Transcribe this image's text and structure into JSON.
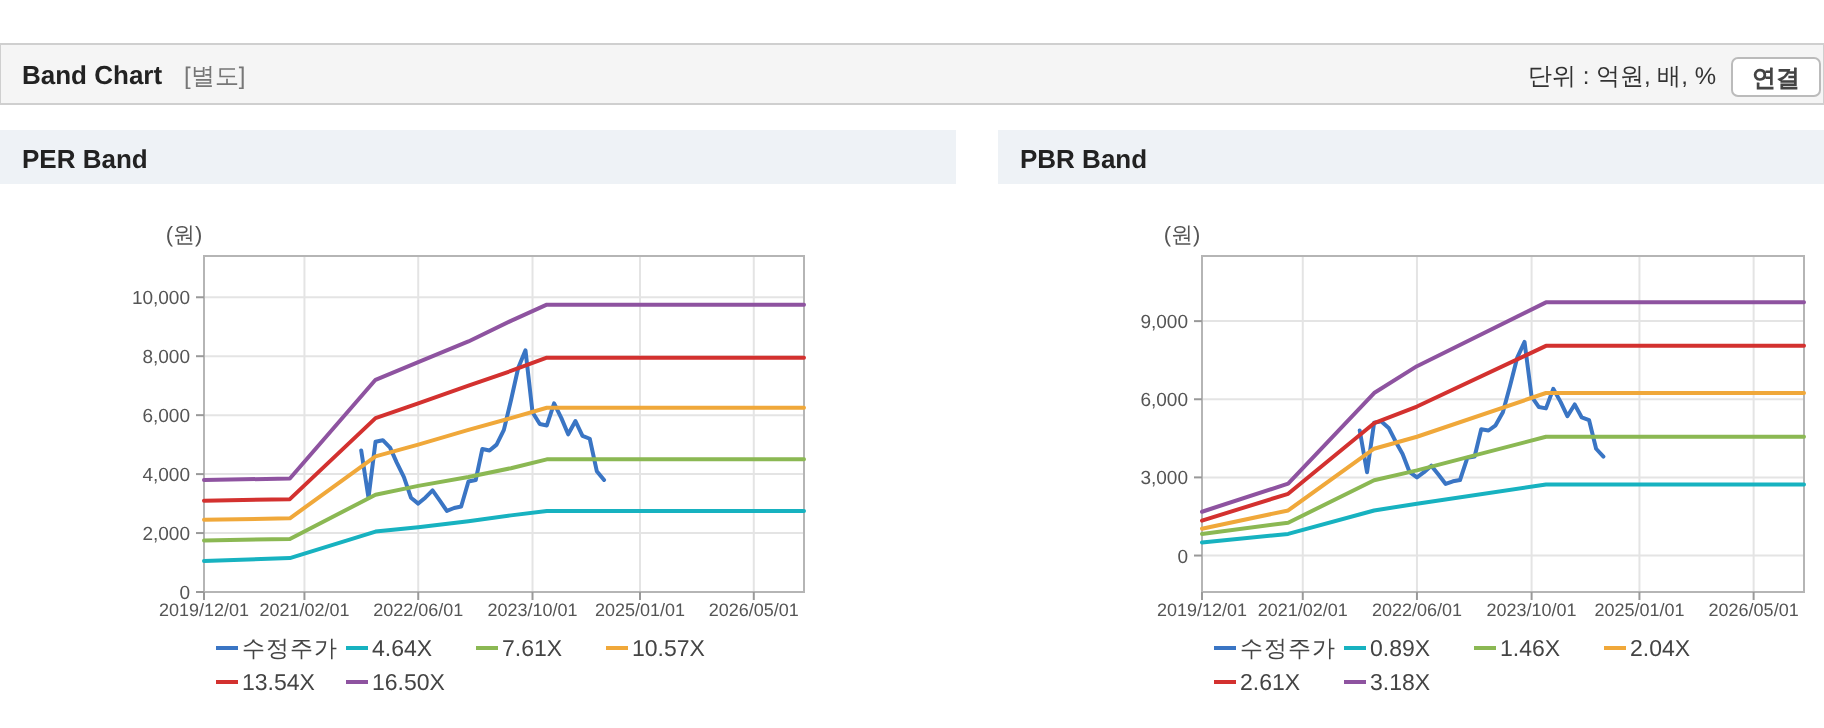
{
  "chart_data": [
    {
      "type": "other",
      "title": "Band Chart",
      "annotations": [
        "[별도]",
        "단위 : 억원, 배, %",
        "연결"
      ]
    },
    {
      "type": "line",
      "title": "PER Band",
      "ylabel": "(원)",
      "xlim": [
        "2019-12-01",
        "2026-12-01"
      ],
      "ylim": [
        0,
        11400
      ],
      "xticks": [
        {
          "value": "2019-12-01",
          "label": "2019/12/01"
        },
        {
          "value": "2021-02-01",
          "label": "2021/02/01"
        },
        {
          "value": "2022-06-01",
          "label": "2022/06/01"
        },
        {
          "value": "2023-10-01",
          "label": "2023/10/01"
        },
        {
          "value": "2025-01-01",
          "label": "2025/01/01"
        },
        {
          "value": "2026-05-01",
          "label": "2026/05/01"
        }
      ],
      "yticks": [
        0,
        {
          "value": 2000,
          "label": "2,000"
        },
        {
          "value": 4000,
          "label": "4,000"
        },
        {
          "value": 6000,
          "label": "6,000"
        },
        {
          "value": 8000,
          "label": "8,000"
        },
        {
          "value": 10000,
          "label": "10,000"
        }
      ],
      "grid": true,
      "legend": "bottom",
      "series": [
        {
          "name": "수정주가",
          "color": "#3a75c4",
          "x": [
            "2021-10-01",
            "2021-11-01",
            "2021-12-01",
            "2022-01-01",
            "2022-02-01",
            "2022-03-01",
            "2022-04-01",
            "2022-05-01",
            "2022-06-01",
            "2022-07-01",
            "2022-08-01",
            "2022-09-01",
            "2022-10-01",
            "2022-11-01",
            "2022-12-01",
            "2023-01-01",
            "2023-02-01",
            "2023-03-01",
            "2023-04-01",
            "2023-05-01",
            "2023-06-01",
            "2023-07-01",
            "2023-08-01",
            "2023-09-01",
            "2023-10-01",
            "2023-11-01",
            "2023-12-01",
            "2024-01-01",
            "2024-02-01",
            "2024-03-01",
            "2024-04-01",
            "2024-05-01",
            "2024-06-01",
            "2024-07-01",
            "2024-08-01"
          ],
          "values": [
            4800,
            3200,
            5100,
            5150,
            4900,
            4400,
            3900,
            3200,
            3000,
            3200,
            3450,
            3100,
            2750,
            2850,
            2900,
            3750,
            3800,
            4850,
            4800,
            5000,
            5500,
            6500,
            7600,
            8200,
            6100,
            5700,
            5650,
            6400,
            5900,
            5350,
            5800,
            5300,
            5200,
            4100,
            3800
          ]
        },
        {
          "name": "4.64X",
          "color": "#17b2c0",
          "x": [
            "2019-12-01",
            "2020-12-01",
            "2021-12-01",
            "2022-06-01",
            "2023-01-01",
            "2023-07-01",
            "2023-12-01",
            "2026-12-01"
          ],
          "values": [
            1050,
            1150,
            2050,
            2200,
            2400,
            2600,
            2750,
            2750
          ]
        },
        {
          "name": "7.61X",
          "color": "#8bb853",
          "x": [
            "2019-12-01",
            "2020-12-01",
            "2021-12-01",
            "2022-06-01",
            "2023-01-01",
            "2023-07-01",
            "2023-12-01",
            "2026-12-01"
          ],
          "values": [
            1750,
            1800,
            3300,
            3600,
            3900,
            4200,
            4500,
            4500
          ]
        },
        {
          "name": "10.57X",
          "color": "#f0a83a",
          "x": [
            "2019-12-01",
            "2020-12-01",
            "2021-12-01",
            "2022-06-01",
            "2023-01-01",
            "2023-07-01",
            "2023-12-01",
            "2026-12-01"
          ],
          "values": [
            2450,
            2500,
            4600,
            5000,
            5500,
            5900,
            6250,
            6250
          ]
        },
        {
          "name": "13.54X",
          "color": "#d3312f",
          "x": [
            "2019-12-01",
            "2020-12-01",
            "2021-12-01",
            "2022-06-01",
            "2023-01-01",
            "2023-07-01",
            "2023-12-01",
            "2026-12-01"
          ],
          "values": [
            3100,
            3150,
            5900,
            6400,
            7000,
            7500,
            7950,
            7950
          ]
        },
        {
          "name": "16.50X",
          "color": "#8e53a0",
          "x": [
            "2019-12-01",
            "2020-12-01",
            "2021-12-01",
            "2022-06-01",
            "2023-01-01",
            "2023-07-01",
            "2023-12-01",
            "2026-12-01"
          ],
          "values": [
            3800,
            3850,
            7200,
            7800,
            8500,
            9200,
            9750,
            9750
          ]
        }
      ]
    },
    {
      "type": "line",
      "title": "PBR Band",
      "ylabel": "(원)",
      "xlim": [
        "2019-12-01",
        "2026-12-01"
      ],
      "ylim": [
        -1400,
        11500
      ],
      "xticks": [
        {
          "value": "2019-12-01",
          "label": "2019/12/01"
        },
        {
          "value": "2021-02-01",
          "label": "2021/02/01"
        },
        {
          "value": "2022-06-01",
          "label": "2022/06/01"
        },
        {
          "value": "2023-10-01",
          "label": "2023/10/01"
        },
        {
          "value": "2025-01-01",
          "label": "2025/01/01"
        },
        {
          "value": "2026-05-01",
          "label": "2026/05/01"
        }
      ],
      "yticks": [
        0,
        {
          "value": 3000,
          "label": "3,000"
        },
        {
          "value": 6000,
          "label": "6,000"
        },
        {
          "value": 9000,
          "label": "9,000"
        }
      ],
      "grid": true,
      "legend": "bottom",
      "series": [
        {
          "name": "수정주가",
          "color": "#3a75c4",
          "x": [
            "2021-10-01",
            "2021-11-01",
            "2021-12-01",
            "2022-01-01",
            "2022-02-01",
            "2022-03-01",
            "2022-04-01",
            "2022-05-01",
            "2022-06-01",
            "2022-07-01",
            "2022-08-01",
            "2022-09-01",
            "2022-10-01",
            "2022-11-01",
            "2022-12-01",
            "2023-01-01",
            "2023-02-01",
            "2023-03-01",
            "2023-04-01",
            "2023-05-01",
            "2023-06-01",
            "2023-07-01",
            "2023-08-01",
            "2023-09-01",
            "2023-10-01",
            "2023-11-01",
            "2023-12-01",
            "2024-01-01",
            "2024-02-01",
            "2024-03-01",
            "2024-04-01",
            "2024-05-01",
            "2024-06-01",
            "2024-07-01",
            "2024-08-01"
          ],
          "values": [
            4800,
            3200,
            5100,
            5150,
            4900,
            4400,
            3900,
            3200,
            3000,
            3200,
            3450,
            3100,
            2750,
            2850,
            2900,
            3750,
            3800,
            4850,
            4800,
            5000,
            5500,
            6500,
            7600,
            8200,
            6100,
            5700,
            5650,
            6400,
            5900,
            5350,
            5800,
            5300,
            5200,
            4100,
            3800
          ]
        },
        {
          "name": "0.89X",
          "color": "#17b2c0",
          "x": [
            "2019-12-01",
            "2020-12-01",
            "2021-12-01",
            "2022-06-01",
            "2023-12-01",
            "2026-12-01"
          ],
          "values": [
            500,
            830,
            1730,
            1990,
            2730,
            2730
          ]
        },
        {
          "name": "1.46X",
          "color": "#8bb853",
          "x": [
            "2019-12-01",
            "2020-12-01",
            "2021-12-01",
            "2022-06-01",
            "2023-12-01",
            "2026-12-01"
          ],
          "values": [
            830,
            1260,
            2890,
            3270,
            4560,
            4560
          ]
        },
        {
          "name": "2.04X",
          "color": "#f0a83a",
          "x": [
            "2019-12-01",
            "2020-12-01",
            "2021-12-01",
            "2022-06-01",
            "2023-12-01",
            "2026-12-01"
          ],
          "values": [
            1030,
            1730,
            4100,
            4560,
            6240,
            6240
          ]
        },
        {
          "name": "2.61X",
          "color": "#d3312f",
          "x": [
            "2019-12-01",
            "2020-12-01",
            "2021-12-01",
            "2022-06-01",
            "2023-12-01",
            "2026-12-01"
          ],
          "values": [
            1340,
            2370,
            5080,
            5720,
            8050,
            8050
          ]
        },
        {
          "name": "3.18X",
          "color": "#8e53a0",
          "x": [
            "2019-12-01",
            "2020-12-01",
            "2021-12-01",
            "2022-06-01",
            "2023-12-01",
            "2026-12-01"
          ],
          "values": [
            1680,
            2760,
            6240,
            7270,
            9720,
            9720
          ]
        }
      ]
    }
  ]
}
